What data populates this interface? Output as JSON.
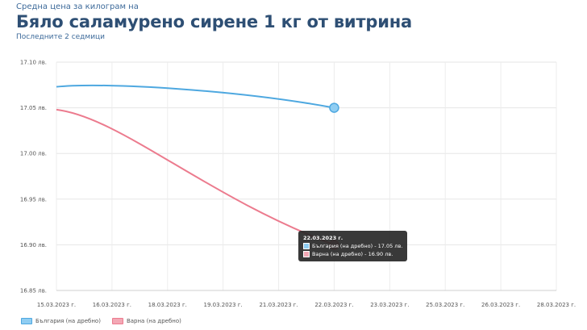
{
  "header": {
    "subtitle_top": "Средна цена за килограм на",
    "title": "Бяло саламурено сирене 1 кг от витрина",
    "subtitle_bottom": "Последните 2 седмици"
  },
  "chart_data": {
    "type": "line",
    "x": [
      "15.03.2023 г.",
      "16.03.2023 г.",
      "18.03.2023 г.",
      "19.03.2023 г.",
      "21.03.2023 г.",
      "22.03.2023 г.",
      "23.03.2023 г.",
      "25.03.2023 г.",
      "26.03.2023 г.",
      "28.03.2023 г."
    ],
    "y_ticks": [
      "17.10 лв.",
      "17.05 лв.",
      "17.00 лв.",
      "16.95 лв.",
      "16.90 лв.",
      "16.85 лв."
    ],
    "ylim": [
      16.85,
      17.1
    ],
    "grid": true,
    "legend_position": "bottom-left",
    "series": [
      {
        "name": "България (на дребно)",
        "color": "#4ea8e0",
        "points": [
          [
            "15.03.2023 г.",
            17.073
          ],
          [
            "22.03.2023 г.",
            17.05
          ]
        ]
      },
      {
        "name": "Варна (на дребно)",
        "color": "#ec7b8e",
        "points": [
          [
            "15.03.2023 г.",
            17.048
          ],
          [
            "22.03.2023 г.",
            16.9
          ]
        ]
      }
    ],
    "tooltip": {
      "title": "22.03.2023 г.",
      "rows": [
        "България (на дребно) - 17.05 лв.",
        "Варна (на дребно) - 16.90 лв."
      ]
    }
  }
}
